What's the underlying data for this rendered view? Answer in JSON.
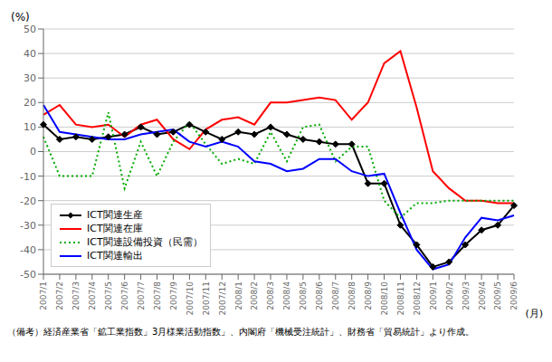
{
  "chart_data": {
    "type": "line",
    "ylabel": "(%)",
    "xlabel": "(月)",
    "categories": [
      "2007/1",
      "2007/2",
      "2007/3",
      "2007/4",
      "2007/5",
      "2007/6",
      "2007/7",
      "2007/8",
      "2007/9",
      "2007/10",
      "2007/11",
      "2007/12",
      "2008/1",
      "2008/2",
      "2008/3",
      "2008/4",
      "2008/5",
      "2008/6",
      "2008/7",
      "2008/8",
      "2008/9",
      "2008/10",
      "2008/11",
      "2008/12",
      "2009/1",
      "2009/2",
      "2009/3",
      "2009/4",
      "2009/5",
      "2009/6"
    ],
    "series": [
      {
        "name": "ICT関連生産",
        "color": "#000000",
        "marker": "diamond",
        "values": [
          11,
          5,
          6,
          5,
          6,
          7,
          10,
          7,
          8,
          11,
          8,
          5,
          8,
          7,
          10,
          7,
          5,
          4,
          3,
          3,
          -13,
          -13,
          -30,
          -38,
          -47,
          -45,
          -38,
          -32,
          -30,
          -22
        ]
      },
      {
        "name": "ICT関連在庫",
        "color": "#ff0000",
        "values": [
          15,
          19,
          11,
          10,
          11,
          6,
          11,
          13,
          5,
          1,
          9,
          13,
          14,
          11,
          20,
          20,
          21,
          22,
          21,
          13,
          20,
          36,
          41,
          18,
          -8,
          -15,
          -20,
          -20,
          -21,
          -21
        ]
      },
      {
        "name": "ICT関連設備投資（民需）",
        "color": "#00aa00",
        "line_style": "dotted",
        "values": [
          6,
          -10,
          -10,
          -10,
          16,
          -15,
          4,
          -10,
          4,
          12,
          3,
          -5,
          -3,
          -5,
          8,
          -4,
          10,
          11,
          -4,
          2,
          2,
          -20,
          -27,
          -21,
          -21,
          -20,
          -20,
          -20,
          -20,
          -20
        ]
      },
      {
        "name": "ICT関連輸出",
        "color": "#0000ff",
        "values": [
          19,
          8,
          7,
          6,
          5,
          5,
          7,
          8,
          9,
          4,
          2,
          4,
          2,
          -4,
          -5,
          -8,
          -7,
          -3,
          -3,
          -8,
          -10,
          -9,
          -25,
          -40,
          -48,
          -46,
          -35,
          -27,
          -28,
          -26
        ]
      }
    ],
    "ylim": [
      -50,
      50
    ],
    "yticks": [
      -50,
      -40,
      -30,
      -20,
      -10,
      0,
      10,
      20,
      30,
      40,
      50
    ],
    "grid": true,
    "legend": "lower left",
    "annotations": [
      "（備考）経済産業省「鉱工業指数」3月様業活動指数」、内閣府「機械受注統計」、財務省「貿易統計」より作成。"
    ]
  }
}
